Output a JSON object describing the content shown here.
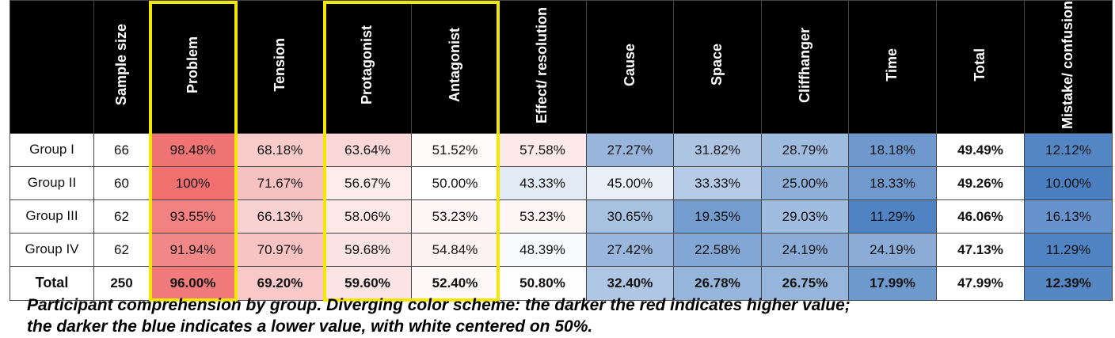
{
  "chart_data": {
    "type": "table",
    "columns": [
      {
        "key": "group",
        "label": ""
      },
      {
        "key": "sample_size",
        "label": "Sample size"
      },
      {
        "key": "problem",
        "label": "Problem"
      },
      {
        "key": "tension",
        "label": "Tension"
      },
      {
        "key": "protagonist",
        "label": "Protagonist"
      },
      {
        "key": "antagonist",
        "label": "Antagonist"
      },
      {
        "key": "effect_resolution",
        "label": "Effect/ resolution"
      },
      {
        "key": "cause",
        "label": "Cause"
      },
      {
        "key": "space",
        "label": "Space"
      },
      {
        "key": "cliffhanger",
        "label": "Cliffhanger"
      },
      {
        "key": "time",
        "label": "Time"
      },
      {
        "key": "total",
        "label": "Total"
      },
      {
        "key": "mistake_confusion",
        "label": "Mistake/ confusion"
      }
    ],
    "rows": [
      {
        "group": "Group I",
        "sample_size": "66",
        "problem": "98.48%",
        "tension": "68.18%",
        "protagonist": "63.64%",
        "antagonist": "51.52%",
        "effect_resolution": "57.58%",
        "cause": "27.27%",
        "space": "31.82%",
        "cliffhanger": "28.79%",
        "time": "18.18%",
        "total": "49.49%",
        "mistake_confusion": "12.12%"
      },
      {
        "group": "Group II",
        "sample_size": "60",
        "problem": "100%",
        "tension": "71.67%",
        "protagonist": "56.67%",
        "antagonist": "50.00%",
        "effect_resolution": "43.33%",
        "cause": "45.00%",
        "space": "33.33%",
        "cliffhanger": "25.00%",
        "time": "18.33%",
        "total": "49.26%",
        "mistake_confusion": "10.00%"
      },
      {
        "group": "Group III",
        "sample_size": "62",
        "problem": "93.55%",
        "tension": "66.13%",
        "protagonist": "58.06%",
        "antagonist": "53.23%",
        "effect_resolution": "53.23%",
        "cause": "30.65%",
        "space": "19.35%",
        "cliffhanger": "29.03%",
        "time": "11.29%",
        "total": "46.06%",
        "mistake_confusion": "16.13%"
      },
      {
        "group": "Group IV",
        "sample_size": "62",
        "problem": "91.94%",
        "tension": "70.97%",
        "protagonist": "59.68%",
        "antagonist": "54.84%",
        "effect_resolution": "48.39%",
        "cause": "27.42%",
        "space": "22.58%",
        "cliffhanger": "24.19%",
        "time": "24.19%",
        "total": "47.13%",
        "mistake_confusion": "11.29%"
      },
      {
        "group": "Total",
        "sample_size": "250",
        "problem": "96.00%",
        "tension": "69.20%",
        "protagonist": "59.60%",
        "antagonist": "52.40%",
        "effect_resolution": "50.80%",
        "cause": "32.40%",
        "space": "26.78%",
        "cliffhanger": "26.75%",
        "time": "17.99%",
        "total": "47.99%",
        "mistake_confusion": "12.39%"
      }
    ],
    "color_scale": {
      "low": "#4a7fc1",
      "mid": "#ffffff",
      "high": "#f07070",
      "mid_value": 50
    },
    "highlight_color": "#f5e800",
    "header_bg": "#000000"
  },
  "caption": {
    "line1": "Participant comprehension by group. Diverging color scheme: the darker the red indicates higher value;",
    "line2": "the darker the blue indicates a lower value, with white centered on 50%."
  }
}
